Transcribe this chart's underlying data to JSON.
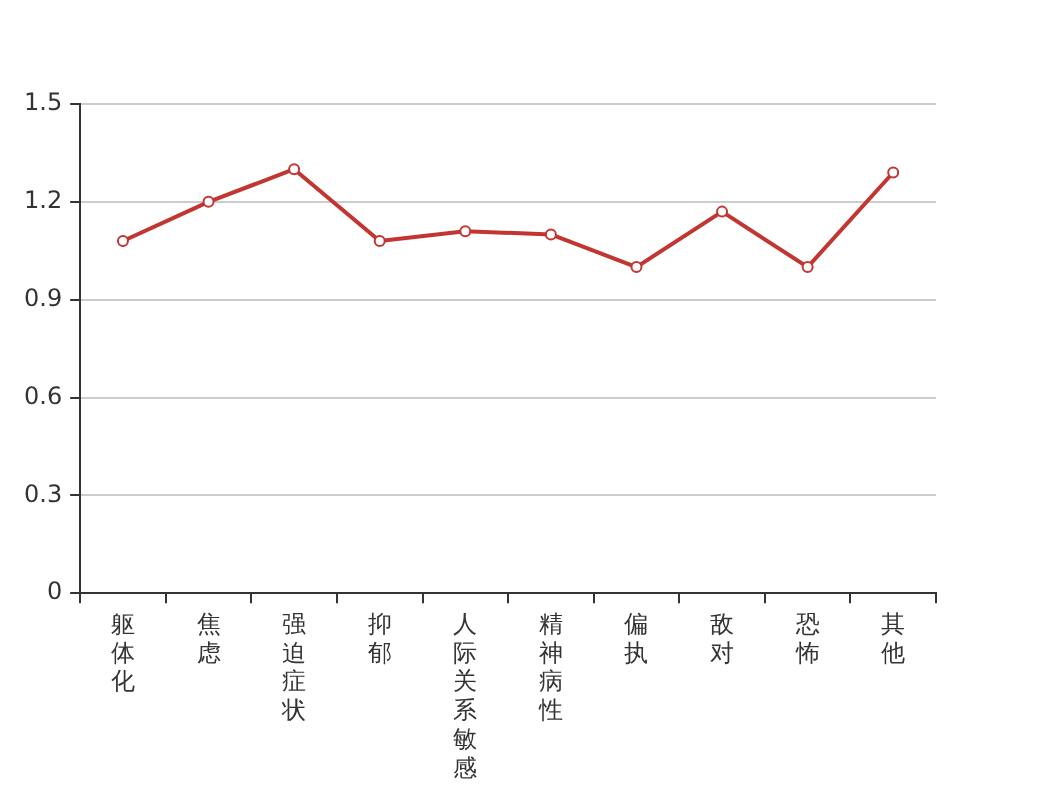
{
  "chart_data": {
    "type": "line",
    "categories": [
      "躯体化",
      "焦虑",
      "强迫症状",
      "抑郁",
      "人际关系敏感",
      "精神病性",
      "偏执",
      "敌对",
      "恐怖",
      "其他"
    ],
    "series": [
      {
        "color": "#c23531",
        "values": [
          1.08,
          1.2,
          1.3,
          1.08,
          1.11,
          1.1,
          1.0,
          1.17,
          1.0,
          1.29
        ]
      }
    ],
    "ylim": [
      0,
      1.5
    ],
    "yticks": [
      0,
      0.3,
      0.6,
      0.9,
      1.2,
      1.5
    ],
    "grid": "y",
    "marker": "circle"
  }
}
